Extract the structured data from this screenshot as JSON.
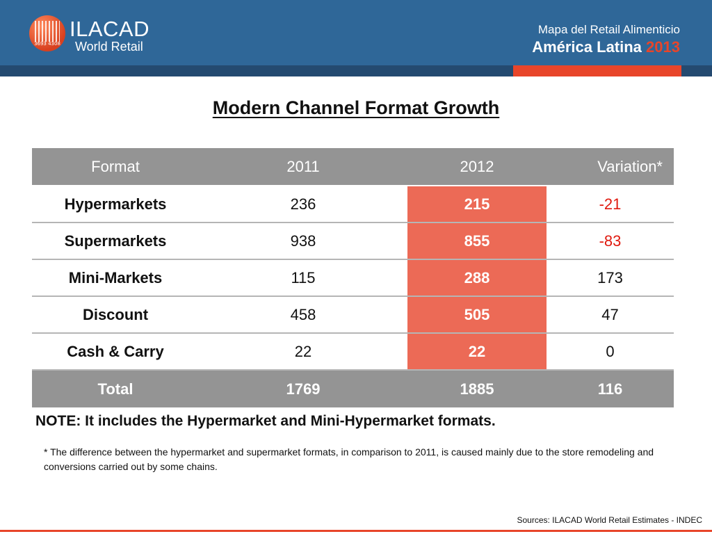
{
  "header": {
    "logo_name": "ILACAD",
    "logo_subtitle": "World Retail",
    "logo_digits": "3693 4308",
    "line1": "Mapa del Retail Alimenticio",
    "line2_text": "América Latina",
    "line2_year": "2013"
  },
  "title": "Modern Channel Format Growth",
  "table": {
    "headers": [
      "Format",
      "2011",
      "2012",
      "Variation*"
    ],
    "rows": [
      {
        "format": "Hypermarkets",
        "y2011": "236",
        "y2012": "215",
        "variation": "-21"
      },
      {
        "format": "Supermarkets",
        "y2011": "938",
        "y2012": "855",
        "variation": "-83"
      },
      {
        "format": "Mini-Markets",
        "y2011": "115",
        "y2012": "288",
        "variation": "173"
      },
      {
        "format": "Discount",
        "y2011": "458",
        "y2012": "505",
        "variation": "47"
      },
      {
        "format": "Cash & Carry",
        "y2011": "22",
        "y2012": "22",
        "variation": "0"
      }
    ],
    "total": {
      "format": "Total",
      "y2011": "1769",
      "y2012": "1885",
      "variation": "116"
    }
  },
  "note": "NOTE: It includes the Hypermarket and Mini-Hypermarket formats.",
  "footnote": "* The difference between the hypermarket and supermarket formats, in comparison to 2011, is caused mainly due to the store remodeling and conversions carried out by some chains.",
  "sources": "Sources: ILACAD World Retail Estimates - INDEC",
  "colors": {
    "header_blue": "#2f6798",
    "accent_red": "#e8452a",
    "table_gray": "#949494",
    "highlight_salmon": "#ec6a56",
    "negative_red": "#e0190e"
  }
}
